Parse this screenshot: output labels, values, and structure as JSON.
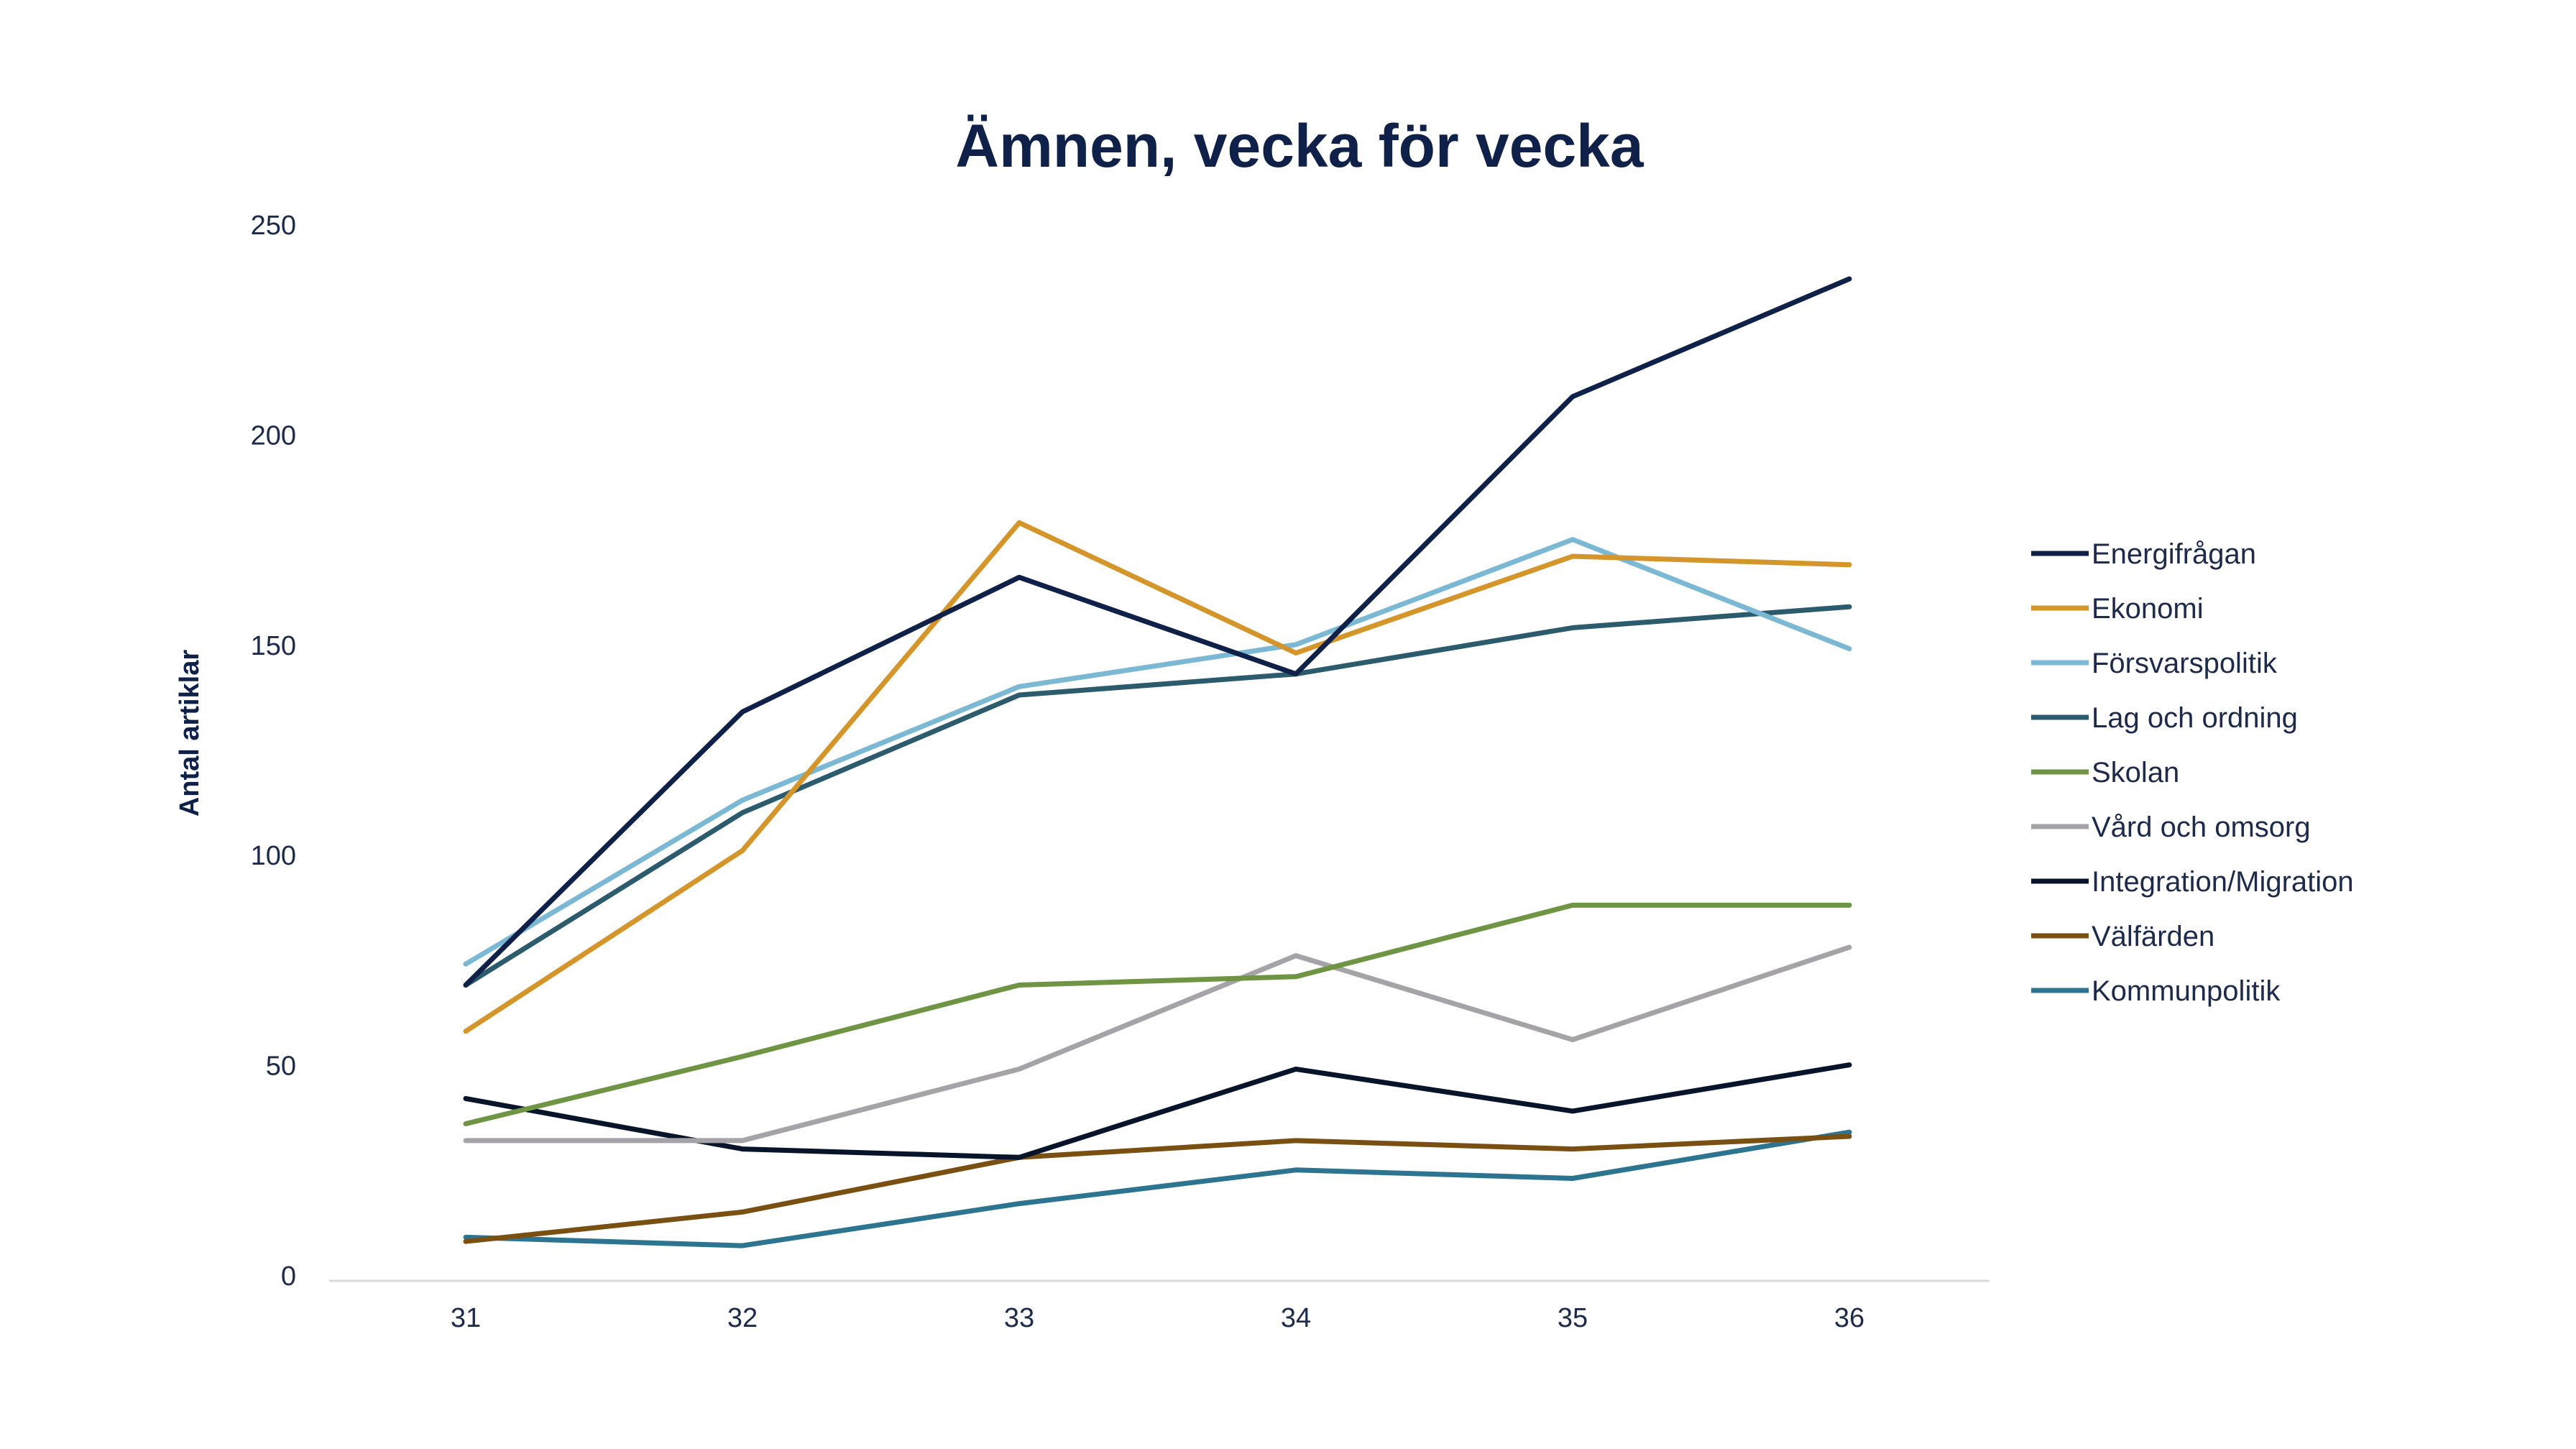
{
  "chart_data": {
    "type": "line",
    "title": "Ämnen, vecka för vecka",
    "xlabel": "",
    "ylabel": "Antal artiklar",
    "categories": [
      "31",
      "32",
      "33",
      "34",
      "35",
      "36"
    ],
    "ylim": [
      0,
      250
    ],
    "yticks": [
      "0",
      "50",
      "100",
      "150",
      "200",
      "250"
    ],
    "grid": false,
    "legend_position": "right",
    "series": [
      {
        "name": "Energifrågan",
        "color": "#0f2148",
        "values": [
          69,
          134,
          166,
          143,
          209,
          237
        ]
      },
      {
        "name": "Ekonomi",
        "color": "#d4952b",
        "values": [
          58,
          101,
          179,
          148,
          171,
          169
        ]
      },
      {
        "name": "Försvarspolitik",
        "color": "#7ab8d3",
        "values": [
          74,
          113,
          140,
          150,
          175,
          149
        ]
      },
      {
        "name": "Lag och ordning",
        "color": "#2d5b6e",
        "values": [
          69,
          110,
          138,
          143,
          154,
          159
        ]
      },
      {
        "name": "Skolan",
        "color": "#6f9444",
        "values": [
          36,
          52,
          69,
          71,
          88,
          88
        ]
      },
      {
        "name": "Vård och omsorg",
        "color": "#a5a3a8",
        "values": [
          32,
          32,
          49,
          76,
          56,
          78
        ]
      },
      {
        "name": "Integration/Migration",
        "color": "#081429",
        "values": [
          42,
          30,
          28,
          49,
          39,
          50
        ]
      },
      {
        "name": "Välfärden",
        "color": "#7a4f12",
        "values": [
          8,
          15,
          28,
          32,
          30,
          33
        ]
      },
      {
        "name": "Kommunpolitik",
        "color": "#2c7490",
        "values": [
          9,
          7,
          17,
          25,
          23,
          34
        ]
      }
    ]
  }
}
